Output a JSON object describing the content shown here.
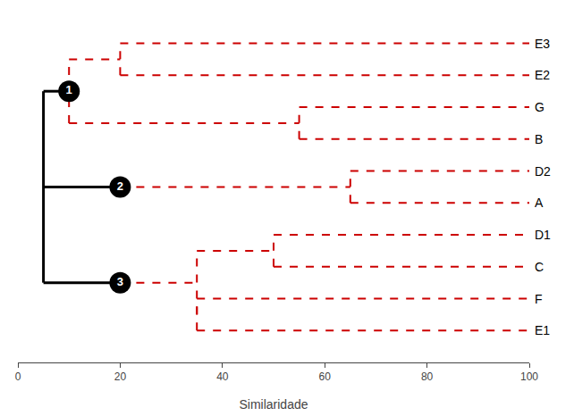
{
  "chart_data": {
    "type": "dendrogram",
    "xlabel": "Similaridade",
    "xlim": [
      0,
      100
    ],
    "xticks": [
      0,
      20,
      40,
      60,
      80,
      100
    ],
    "ylim": [
      0.0,
      10.8
    ],
    "grid": false,
    "tick_labels": "x",
    "tree": {
      "x": 5,
      "line_style": "solid",
      "color": "#000000",
      "children": [
        {
          "label": "1",
          "marker": "circle",
          "x": 10,
          "line_style": "dashed",
          "color": "#cc0000",
          "children": [
            {
              "x": 20,
              "line_style": "dashed",
              "color": "#cc0000",
              "children": [
                "E3",
                "E2"
              ]
            },
            {
              "x": 55,
              "line_style": "dashed",
              "color": "#cc0000",
              "children": [
                "G",
                "B"
              ]
            }
          ]
        },
        {
          "label": "2",
          "marker": "circle",
          "x": 20,
          "line_style": "dashed",
          "color": "#cc0000",
          "children": [
            {
              "x": 65,
              "line_style": "dashed",
              "color": "#cc0000",
              "children": [
                "D2",
                "A"
              ]
            }
          ]
        },
        {
          "label": "3",
          "marker": "circle",
          "x": 20,
          "line_style": "dashed",
          "color": "#cc0000",
          "children": [
            {
              "x": 35,
              "line_style": "dashed",
              "color": "#cc0000",
              "children": [
                {
                  "x": 50,
                  "line_style": "dashed",
                  "color": "#cc0000",
                  "children": [
                    "D1",
                    "C"
                  ]
                },
                {
                  "x": 35,
                  "line_style": "dashed",
                  "color": "#cc0000",
                  "children": [
                    "F",
                    "E1"
                  ]
                }
              ]
            }
          ]
        }
      ]
    }
  }
}
